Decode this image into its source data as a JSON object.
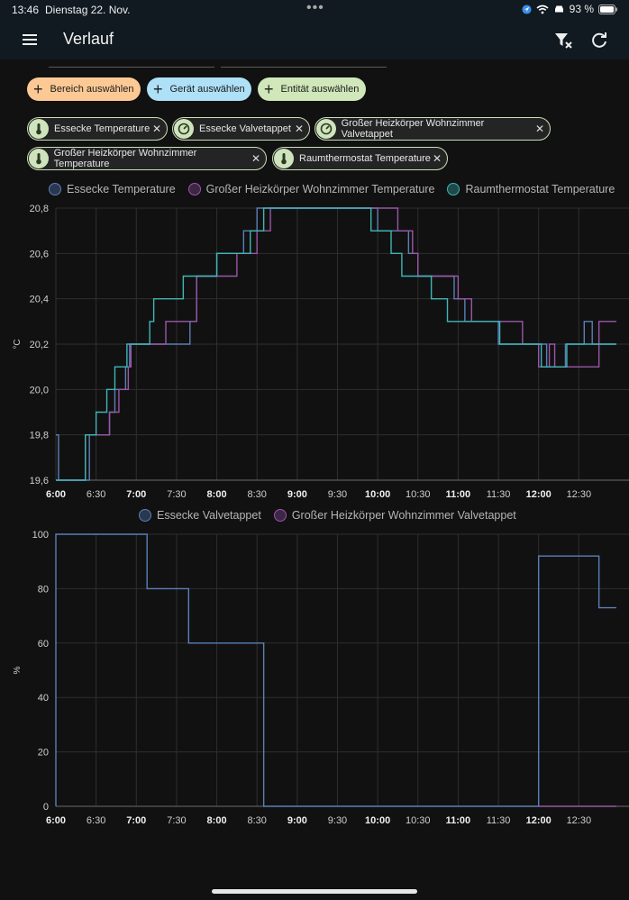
{
  "status_bar": {
    "time": "13:46",
    "date": "Dienstag 22. Nov.",
    "battery": "93 %"
  },
  "header": {
    "title": "Verlauf"
  },
  "pickers": [
    {
      "label": "Bereich auswählen",
      "color": "#fcc995"
    },
    {
      "label": "Gerät auswählen",
      "color": "#aee0f7"
    },
    {
      "label": "Entität auswählen",
      "color": "#cfe7b9"
    }
  ],
  "chips": [
    {
      "label": "Essecke Temperature",
      "icon": "thermometer-icon"
    },
    {
      "label": "Essecke Valvetappet",
      "icon": "gauge-icon"
    },
    {
      "label": "Großer Heizkörper Wohnzimmer Valvetappet",
      "icon": "gauge-icon"
    },
    {
      "label": "Großer Heizkörper Wohnzimmer Temperature",
      "icon": "thermometer-icon"
    },
    {
      "label": "Raumthermostat Temperature",
      "icon": "thermometer-icon"
    }
  ],
  "chart_data": [
    {
      "type": "line",
      "ylabel": "°C",
      "ylim": [
        19.6,
        20.8
      ],
      "yticks": [
        "19,6",
        "19,8",
        "20,0",
        "20,2",
        "20,4",
        "20,6",
        "20,8"
      ],
      "xticks": [
        {
          "label": "6:00",
          "bold": true
        },
        {
          "label": "6:30",
          "bold": false
        },
        {
          "label": "7:00",
          "bold": true
        },
        {
          "label": "7:30",
          "bold": false
        },
        {
          "label": "8:00",
          "bold": true
        },
        {
          "label": "8:30",
          "bold": false
        },
        {
          "label": "9:00",
          "bold": true
        },
        {
          "label": "9:30",
          "bold": false
        },
        {
          "label": "10:00",
          "bold": true
        },
        {
          "label": "10:30",
          "bold": false
        },
        {
          "label": "11:00",
          "bold": true
        },
        {
          "label": "11:30",
          "bold": false
        },
        {
          "label": "12:00",
          "bold": true
        },
        {
          "label": "12:30",
          "bold": false
        }
      ],
      "x_unit": "minutes after 6:00",
      "xlim": [
        0,
        418
      ],
      "grid": true,
      "legend_position": "top",
      "series": [
        {
          "name": "Essecke Temperature",
          "color": "#5b7fb8",
          "points": [
            [
              0,
              19.8
            ],
            [
              2,
              19.6
            ],
            [
              25,
              19.8
            ],
            [
              40,
              19.9
            ],
            [
              44,
              20.0
            ],
            [
              52,
              20.1
            ],
            [
              55,
              20.2
            ],
            [
              100,
              20.3
            ],
            [
              105,
              20.5
            ],
            [
              120,
              20.6
            ],
            [
              140,
              20.7
            ],
            [
              150,
              20.8
            ],
            [
              240,
              20.7
            ],
            [
              263,
              20.6
            ],
            [
              270,
              20.5
            ],
            [
              297,
              20.4
            ],
            [
              305,
              20.3
            ],
            [
              330,
              20.2
            ],
            [
              366,
              20.1
            ],
            [
              380,
              20.2
            ],
            [
              394,
              20.3
            ],
            [
              400,
              20.2
            ],
            [
              418,
              20.2
            ]
          ]
        },
        {
          "name": "Großer Heizkörper Wohnzimmer Temperature",
          "color": "#9a56a8",
          "points": [
            [
              0,
              19.6
            ],
            [
              22,
              19.8
            ],
            [
              40,
              19.9
            ],
            [
              47,
              20.0
            ],
            [
              54,
              20.1
            ],
            [
              56,
              20.2
            ],
            [
              82,
              20.3
            ],
            [
              105,
              20.5
            ],
            [
              135,
              20.6
            ],
            [
              150,
              20.7
            ],
            [
              160,
              20.8
            ],
            [
              255,
              20.7
            ],
            [
              266,
              20.6
            ],
            [
              270,
              20.5
            ],
            [
              300,
              20.4
            ],
            [
              310,
              20.3
            ],
            [
              348,
              20.2
            ],
            [
              360,
              20.1
            ],
            [
              368,
              20.2
            ],
            [
              372,
              20.1
            ],
            [
              405,
              20.3
            ],
            [
              418,
              20.3
            ]
          ]
        },
        {
          "name": "Raumthermostat Temperature",
          "color": "#3fb6b5",
          "points": [
            [
              0,
              19.6
            ],
            [
              22,
              19.8
            ],
            [
              30,
              19.9
            ],
            [
              38,
              20.0
            ],
            [
              44,
              20.1
            ],
            [
              53,
              20.2
            ],
            [
              70,
              20.3
            ],
            [
              73,
              20.4
            ],
            [
              95,
              20.5
            ],
            [
              120,
              20.6
            ],
            [
              145,
              20.7
            ],
            [
              155,
              20.8
            ],
            [
              235,
              20.7
            ],
            [
              250,
              20.6
            ],
            [
              258,
              20.5
            ],
            [
              280,
              20.4
            ],
            [
              292,
              20.3
            ],
            [
              331,
              20.2
            ],
            [
              362,
              20.1
            ],
            [
              381,
              20.2
            ],
            [
              418,
              20.2
            ]
          ]
        }
      ]
    },
    {
      "type": "line",
      "ylabel": "%",
      "ylim": [
        0,
        100
      ],
      "yticks": [
        "0",
        "20",
        "40",
        "60",
        "80",
        "100"
      ],
      "xticks": [
        {
          "label": "6:00",
          "bold": true
        },
        {
          "label": "6:30",
          "bold": false
        },
        {
          "label": "7:00",
          "bold": true
        },
        {
          "label": "7:30",
          "bold": false
        },
        {
          "label": "8:00",
          "bold": true
        },
        {
          "label": "8:30",
          "bold": false
        },
        {
          "label": "9:00",
          "bold": true
        },
        {
          "label": "9:30",
          "bold": false
        },
        {
          "label": "10:00",
          "bold": true
        },
        {
          "label": "10:30",
          "bold": false
        },
        {
          "label": "11:00",
          "bold": true
        },
        {
          "label": "11:30",
          "bold": false
        },
        {
          "label": "12:00",
          "bold": true
        },
        {
          "label": "12:30",
          "bold": false
        }
      ],
      "x_unit": "minutes after 6:00",
      "xlim": [
        0,
        418
      ],
      "grid": true,
      "legend_position": "top",
      "series": [
        {
          "name": "Essecke Valvetappet",
          "color": "#5b7fb8",
          "points": [
            [
              0,
              0
            ],
            [
              0,
              100
            ],
            [
              68,
              100
            ],
            [
              68,
              80
            ],
            [
              99,
              80
            ],
            [
              99,
              60
            ],
            [
              155,
              60
            ],
            [
              155,
              0
            ],
            [
              360,
              0
            ],
            [
              360,
              92
            ],
            [
              405,
              92
            ],
            [
              405,
              73
            ],
            [
              418,
              73
            ]
          ]
        },
        {
          "name": "Großer Heizkörper Wohnzimmer Valvetappet",
          "color": "#9a56a8",
          "points": [
            [
              360,
              0
            ],
            [
              418,
              0
            ]
          ]
        }
      ]
    }
  ]
}
